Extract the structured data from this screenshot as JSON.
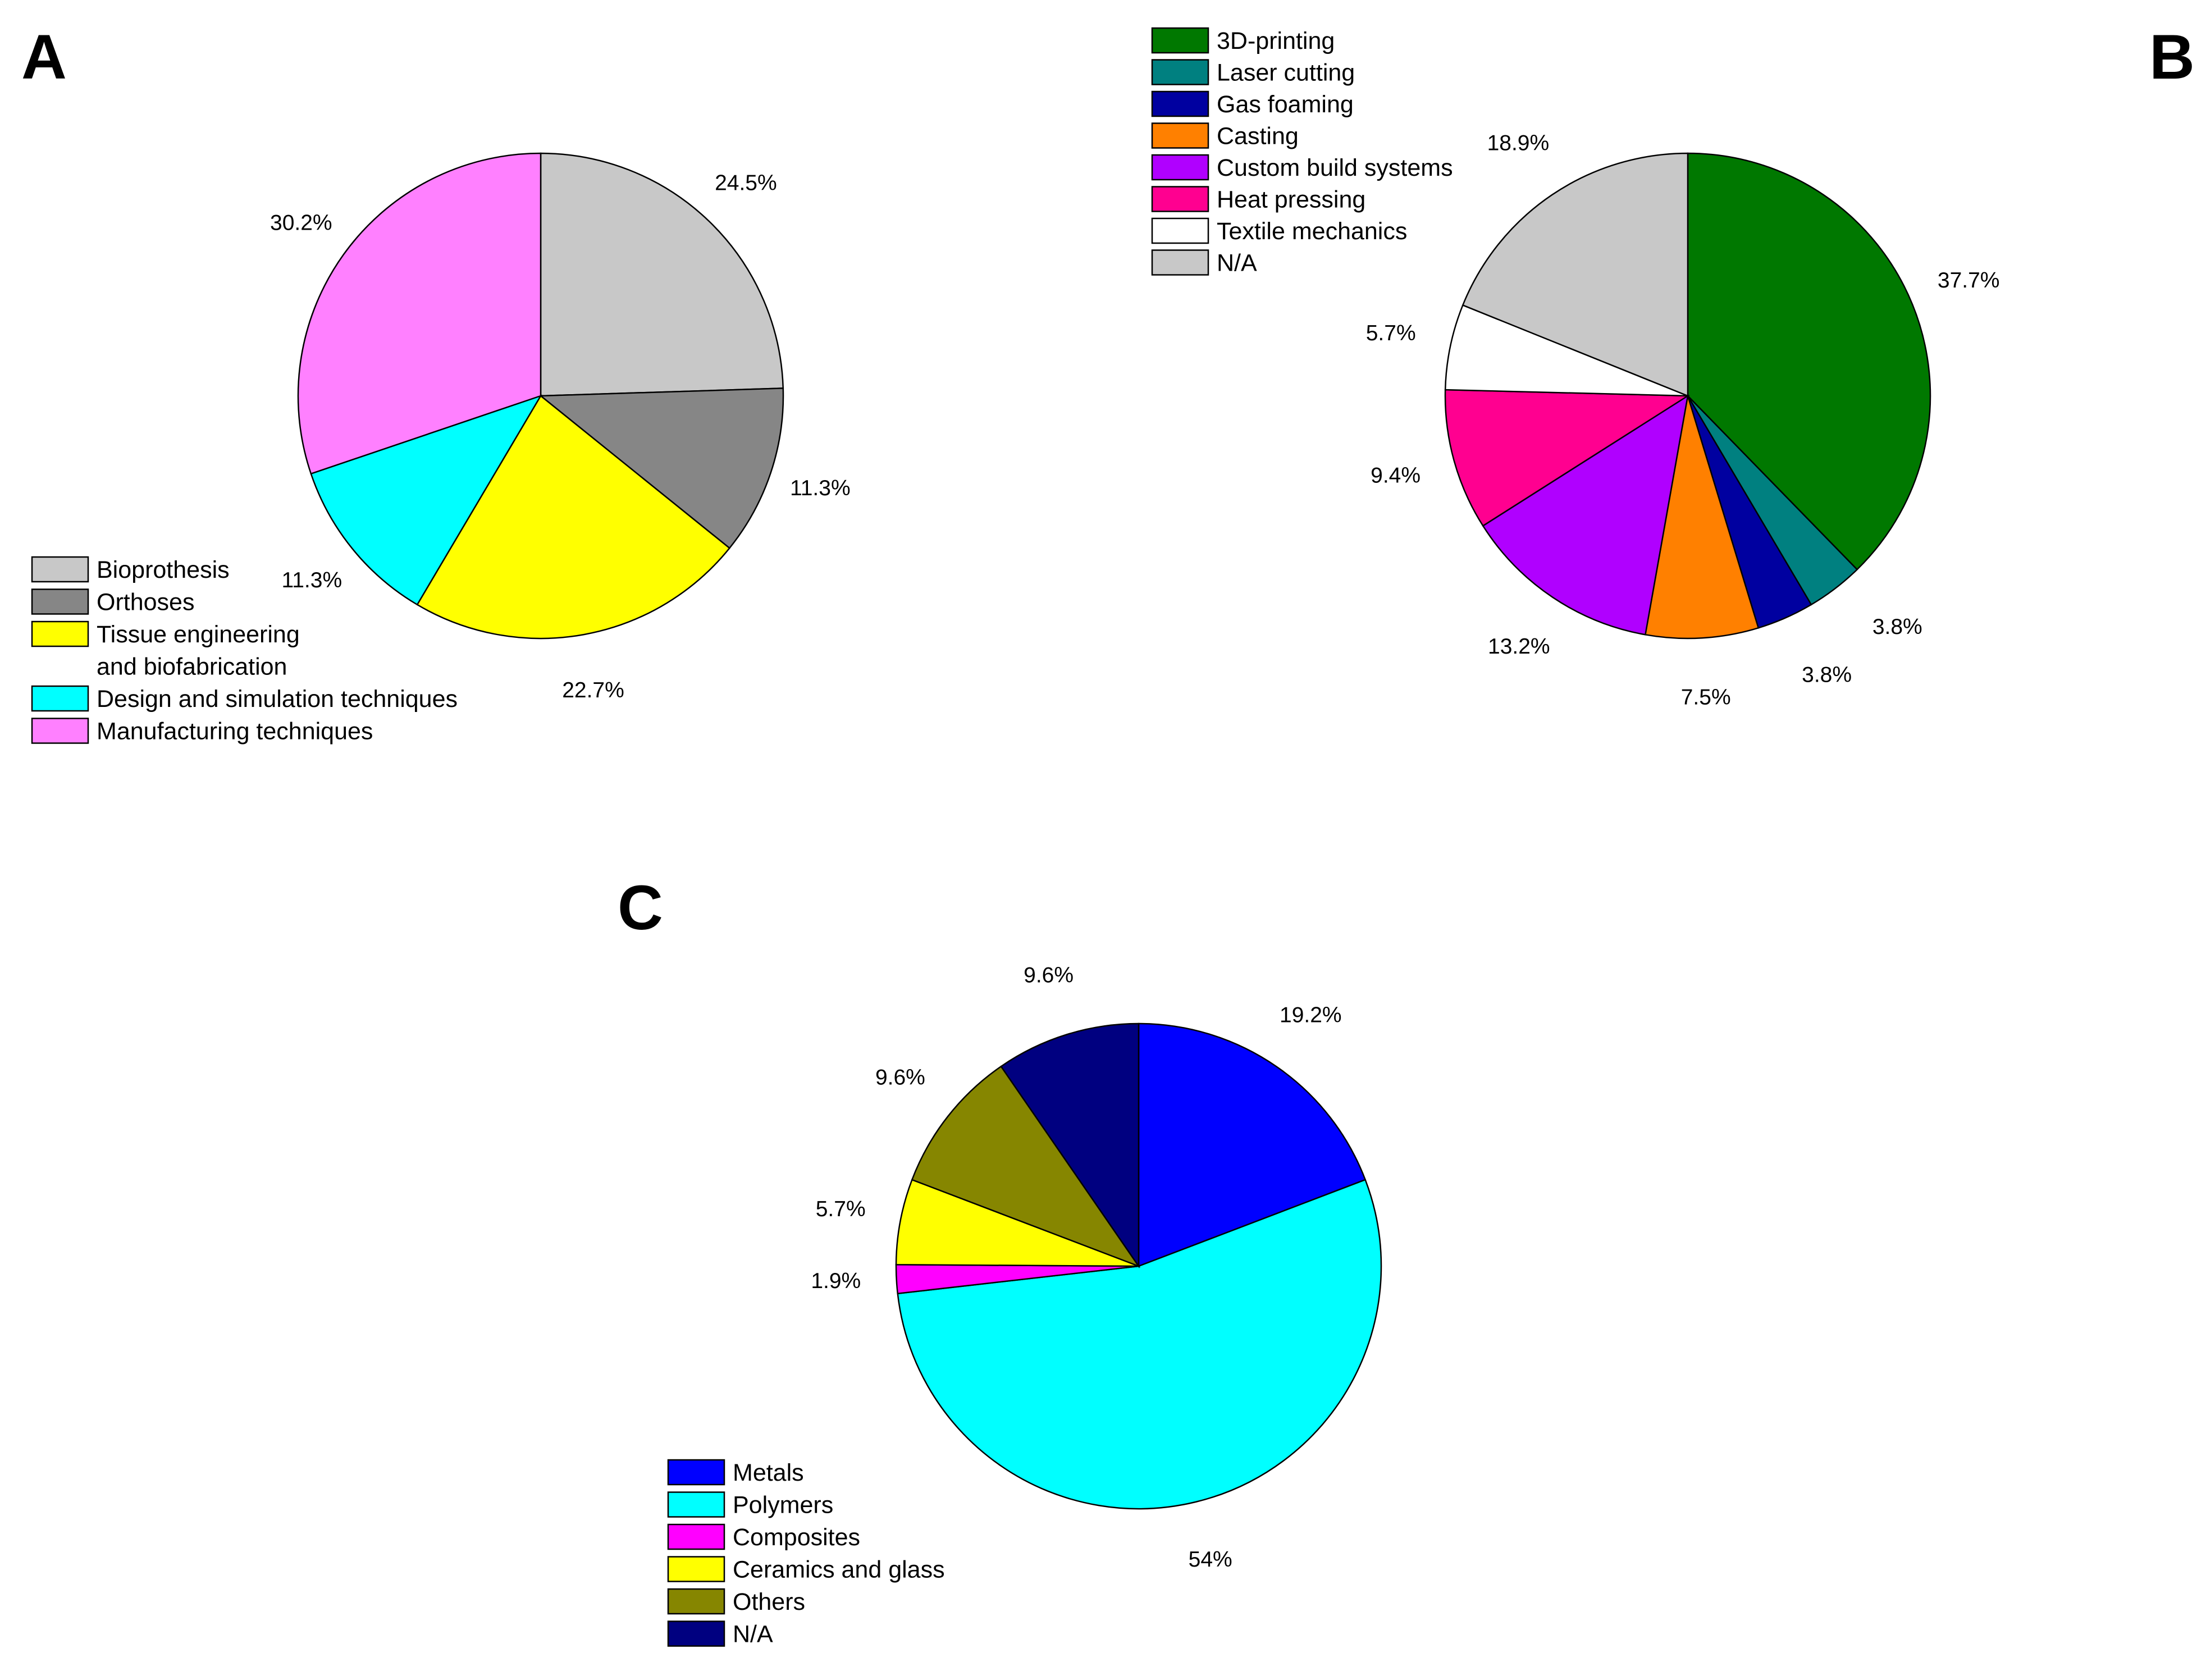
{
  "chart_data": [
    {
      "type": "pie",
      "panel": "A",
      "slices": [
        {
          "label": "Bioprothesis",
          "pct_label": "24.5%",
          "value": 24.5,
          "color": "#c8c8c8"
        },
        {
          "label": "Orthoses",
          "pct_label": "11.3%",
          "value": 11.3,
          "color": "#868686"
        },
        {
          "label": "Tissue engineering and biofabrication",
          "pct_label": "22.7%",
          "value": 22.7,
          "color": "#ffff00"
        },
        {
          "label": "Design and simulation techniques",
          "pct_label": "11.3%",
          "value": 11.3,
          "color": "#00ffff"
        },
        {
          "label": "Manufacturing techniques",
          "pct_label": "30.2%",
          "value": 30.2,
          "color": "#ff80ff"
        }
      ],
      "legend": [
        {
          "lines": [
            "Bioprothesis"
          ],
          "color": "#c8c8c8"
        },
        {
          "lines": [
            "Orthoses"
          ],
          "color": "#868686"
        },
        {
          "lines": [
            "Tissue engineering",
            "and biofabrication"
          ],
          "color": "#ffff00"
        },
        {
          "lines": [
            "Design and simulation techniques"
          ],
          "color": "#00ffff"
        },
        {
          "lines": [
            "Manufacturing techniques"
          ],
          "color": "#ff80ff"
        }
      ],
      "legend_position": "bottom-left"
    },
    {
      "type": "pie",
      "panel": "B",
      "slices": [
        {
          "label": "3D-printing",
          "pct_label": "37.7%",
          "value": 37.7,
          "color": "#007800"
        },
        {
          "label": "Laser cutting",
          "pct_label": "3.8%",
          "value": 3.8,
          "color": "#008080"
        },
        {
          "label": "Gas foaming",
          "pct_label": "3.8%",
          "value": 3.8,
          "color": "#0000a0"
        },
        {
          "label": "Casting",
          "pct_label": "7.5%",
          "value": 7.5,
          "color": "#ff8000"
        },
        {
          "label": "Custom build systems",
          "pct_label": "13.2%",
          "value": 13.2,
          "color": "#b000ff"
        },
        {
          "label": "Heat pressing",
          "pct_label": "9.4%",
          "value": 9.4,
          "color": "#ff0090"
        },
        {
          "label": "Textile mechanics",
          "pct_label": "5.7%",
          "value": 5.7,
          "color": "#ffffff"
        },
        {
          "label": "N/A",
          "pct_label": "18.9%",
          "value": 18.9,
          "color": "#c8c8c8"
        }
      ],
      "legend": [
        {
          "lines": [
            "3D-printing"
          ],
          "color": "#007800"
        },
        {
          "lines": [
            "Laser cutting"
          ],
          "color": "#008080"
        },
        {
          "lines": [
            "Gas foaming"
          ],
          "color": "#0000a0"
        },
        {
          "lines": [
            "Casting"
          ],
          "color": "#ff8000"
        },
        {
          "lines": [
            "Custom build systems"
          ],
          "color": "#b000ff"
        },
        {
          "lines": [
            "Heat pressing"
          ],
          "color": "#ff0090"
        },
        {
          "lines": [
            "Textile mechanics"
          ],
          "color": "#ffffff"
        },
        {
          "lines": [
            "N/A"
          ],
          "color": "#c8c8c8"
        }
      ],
      "legend_position": "top-left"
    },
    {
      "type": "pie",
      "panel": "C",
      "slices": [
        {
          "label": "Metals",
          "pct_label": "19.2%",
          "value": 19.2,
          "color": "#0000ff"
        },
        {
          "label": "Polymers",
          "pct_label": "54%",
          "value": 54.0,
          "color": "#00ffff"
        },
        {
          "label": "Composites",
          "pct_label": "1.9%",
          "value": 1.9,
          "color": "#ff00ff"
        },
        {
          "label": "Ceramics and glass",
          "pct_label": "5.7%",
          "value": 5.7,
          "color": "#ffff00"
        },
        {
          "label": "Others",
          "pct_label": "9.6%",
          "value": 9.6,
          "color": "#868600"
        },
        {
          "label": "N/A",
          "pct_label": "9.6%",
          "value": 9.6,
          "color": "#000080"
        }
      ],
      "legend": [
        {
          "lines": [
            "Metals"
          ],
          "color": "#0000ff"
        },
        {
          "lines": [
            "Polymers"
          ],
          "color": "#00ffff"
        },
        {
          "lines": [
            "Composites"
          ],
          "color": "#ff00ff"
        },
        {
          "lines": [
            "Ceramics and glass"
          ],
          "color": "#ffff00"
        },
        {
          "lines": [
            "Others"
          ],
          "color": "#868600"
        },
        {
          "lines": [
            "N/A"
          ],
          "color": "#000080"
        }
      ],
      "legend_position": "bottom-left"
    }
  ]
}
